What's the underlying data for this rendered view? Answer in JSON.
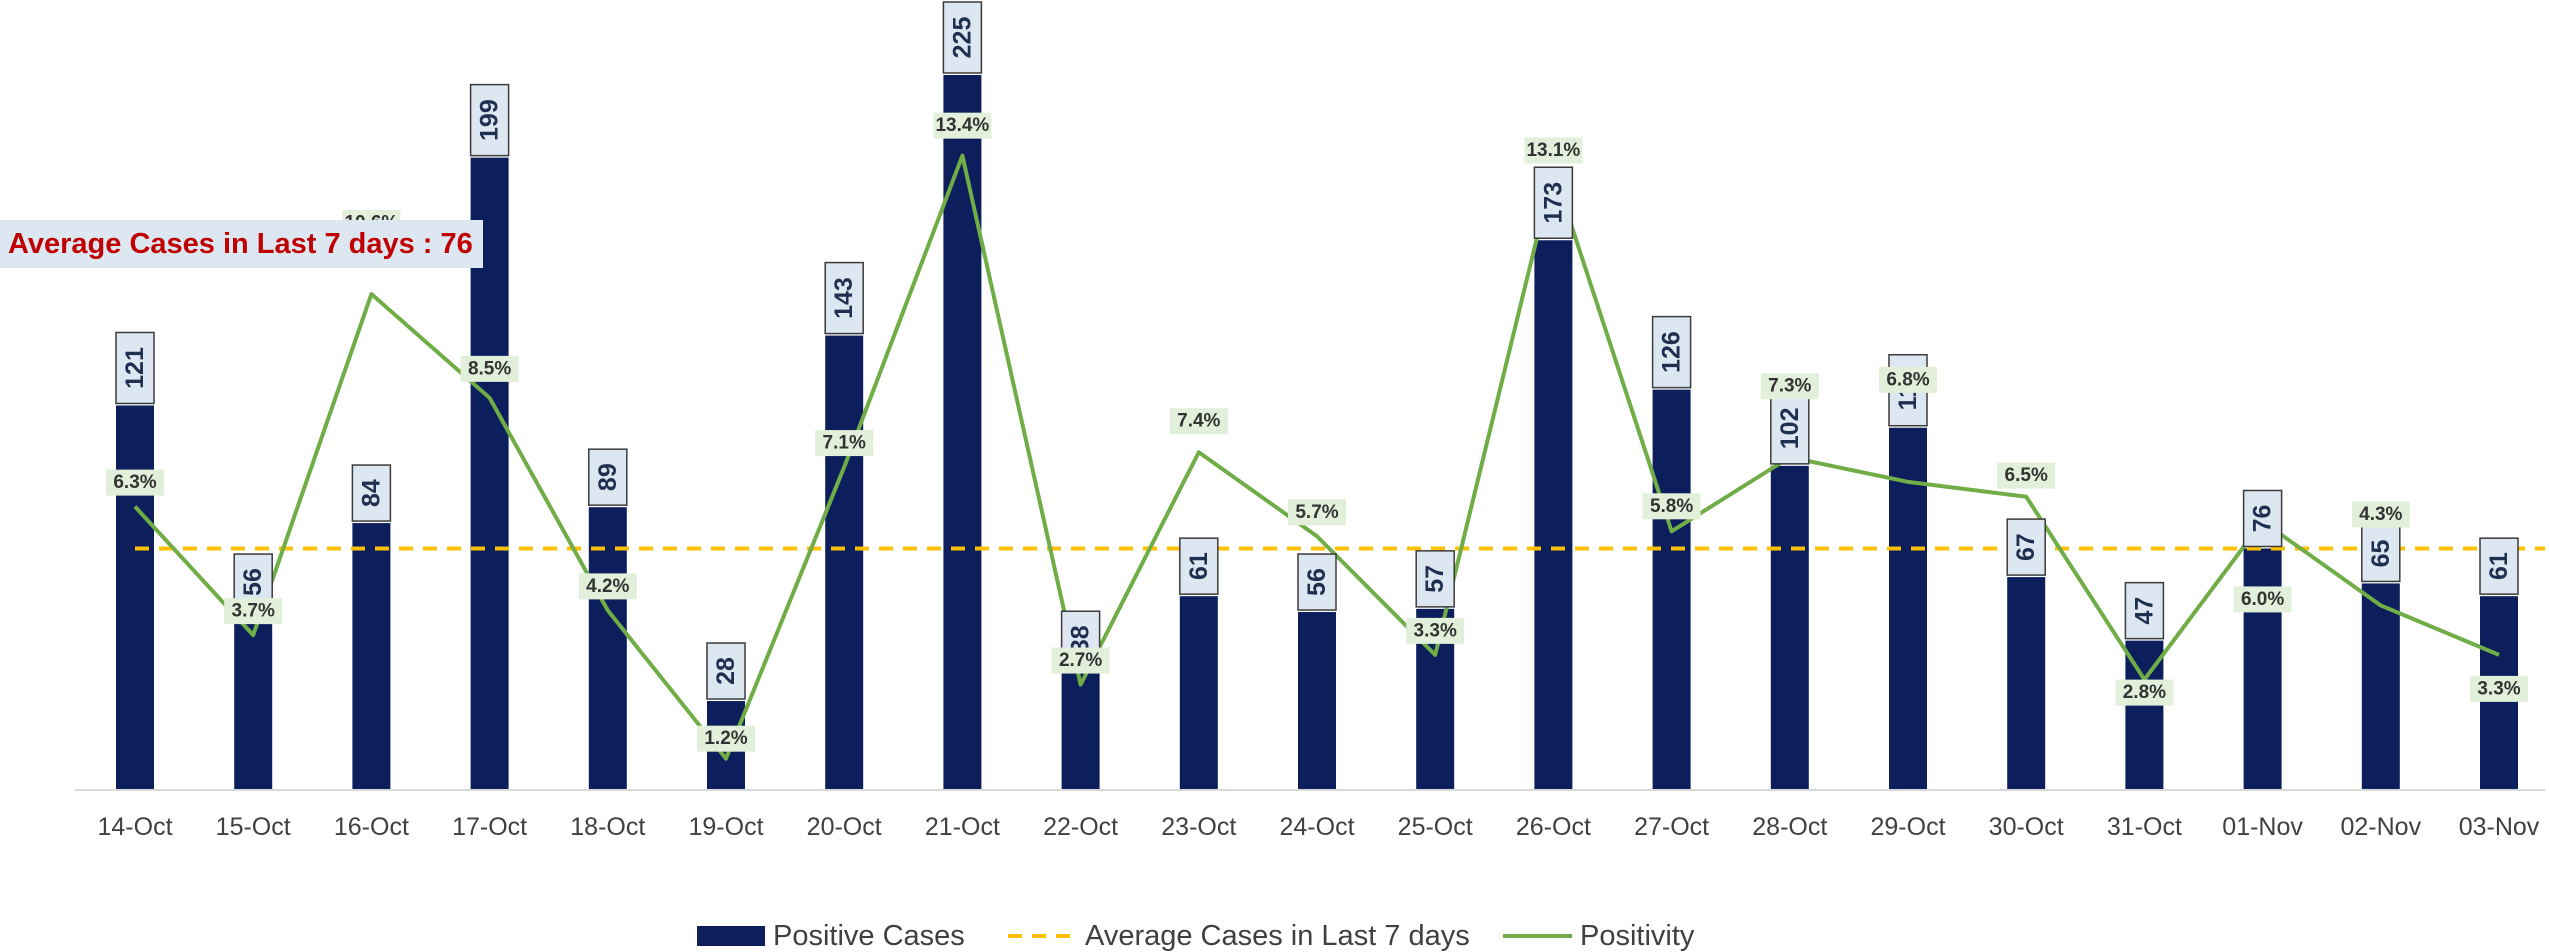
{
  "chart_data": {
    "type": "bar",
    "categories": [
      "14-Oct",
      "15-Oct",
      "16-Oct",
      "17-Oct",
      "18-Oct",
      "19-Oct",
      "20-Oct",
      "21-Oct",
      "22-Oct",
      "23-Oct",
      "24-Oct",
      "25-Oct",
      "26-Oct",
      "27-Oct",
      "28-Oct",
      "29-Oct",
      "30-Oct",
      "31-Oct",
      "01-Nov",
      "02-Nov",
      "03-Nov"
    ],
    "series": [
      {
        "name": "Positive Cases",
        "type": "bar",
        "color": "#0c1f5c",
        "values": [
          121,
          56,
          84,
          199,
          89,
          28,
          143,
          225,
          38,
          61,
          56,
          57,
          173,
          126,
          102,
          114,
          67,
          47,
          76,
          65,
          61
        ]
      },
      {
        "name": "Average Cases in Last 7 days",
        "type": "line",
        "style": "dashed",
        "color": "#ffc000",
        "values": [
          76,
          76,
          76,
          76,
          76,
          76,
          76,
          76,
          76,
          76,
          76,
          76,
          76,
          76,
          76,
          76,
          76,
          76,
          76,
          76,
          76
        ]
      },
      {
        "name": "Positivity",
        "type": "line",
        "color": "#70ad47",
        "values": [
          6.3,
          3.7,
          10.6,
          8.5,
          4.2,
          1.2,
          7.1,
          13.4,
          2.7,
          7.4,
          5.7,
          3.3,
          13.1,
          5.8,
          7.3,
          6.8,
          6.5,
          2.8,
          6.0,
          4.3,
          3.3
        ],
        "labels": [
          "6.3%",
          "3.7%",
          "10.6%",
          "8.5%",
          "4.2%",
          "1.2%",
          "7.1%",
          "13.4%",
          "2.7%",
          "7.4%",
          "5.7%",
          "3.3%",
          "13.1%",
          "5.8%",
          "7.3%",
          "6.8%",
          "6.5%",
          "2.8%",
          "6.0%",
          "4.3%",
          "3.3%"
        ]
      }
    ],
    "ylim_cases": [
      0,
      225
    ],
    "ylim_positivity": [
      0,
      14
    ],
    "legend_position": "bottom",
    "annotation": "Average Cases in Last 7 days : 76"
  }
}
